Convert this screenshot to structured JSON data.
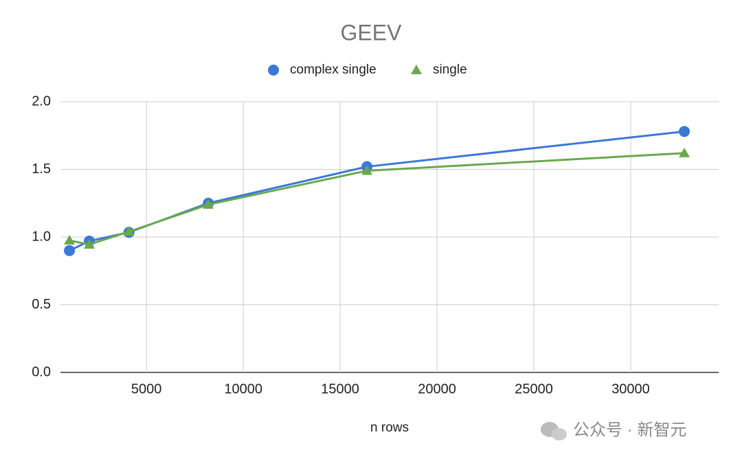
{
  "chart_data": {
    "type": "line",
    "title": "GEEV",
    "x_label": "n rows",
    "x": [
      1024,
      2048,
      4096,
      8192,
      16384,
      32768
    ],
    "series": [
      {
        "name": "complex single",
        "color": "#3c78d8",
        "marker": "circle",
        "values": [
          0.9,
          0.97,
          1.035,
          1.25,
          1.52,
          1.78
        ]
      },
      {
        "name": "single",
        "color": "#6aa84f",
        "marker": "triangle",
        "values": [
          0.975,
          0.945,
          1.04,
          1.24,
          1.49,
          1.62
        ]
      }
    ],
    "xlim": [
      560,
      34540
    ],
    "xticks": [
      5000,
      10000,
      15000,
      20000,
      25000,
      30000
    ],
    "ylim": [
      0,
      2
    ],
    "yticks": [
      {
        "value": 0,
        "label": "0.0"
      },
      0.5,
      {
        "value": 1,
        "label": "1.0"
      },
      1.5,
      {
        "value": 2,
        "label": "2.0"
      }
    ],
    "grid": true,
    "legend": "top",
    "watermark": "公众号 · 新智元"
  }
}
